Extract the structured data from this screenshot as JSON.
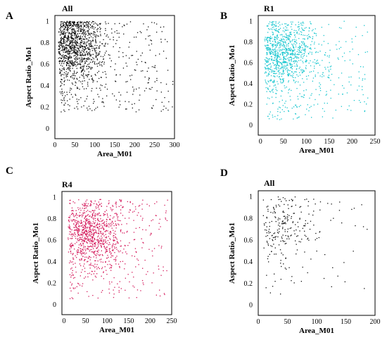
{
  "chart_data": [
    {
      "panel": "A",
      "title": "All",
      "type": "scatter",
      "xlabel": "Area_M01",
      "ylabel": "Aspect Ratio_Mo1",
      "xlim": [
        0,
        300
      ],
      "ylim": [
        -0.1,
        1.05
      ],
      "xticks": [
        0,
        50,
        100,
        150,
        200,
        250,
        300
      ],
      "yticks": [
        0,
        0.2,
        0.4,
        0.6,
        0.8,
        1
      ],
      "color": "#111111",
      "n_points": 1400,
      "cluster_center": [
        38,
        0.78
      ],
      "area_spread": 42,
      "aspect_range": [
        0.15,
        1.0
      ],
      "upper_area": 295
    },
    {
      "panel": "B",
      "title": "R1",
      "type": "scatter",
      "xlabel": "Area_M01",
      "ylabel": "Aspect Ratio_Mo1",
      "xlim": [
        -5,
        250
      ],
      "ylim": [
        -0.1,
        1.05
      ],
      "xticks": [
        0,
        50,
        100,
        150,
        200,
        250
      ],
      "yticks": [
        0,
        0.2,
        0.4,
        0.6,
        0.8,
        1
      ],
      "color": "#18c6cf",
      "n_points": 1100,
      "cluster_center": [
        40,
        0.68
      ],
      "area_spread": 40,
      "aspect_range": [
        0.05,
        1.0
      ],
      "upper_area": 235
    },
    {
      "panel": "C",
      "title": "R4",
      "type": "scatter",
      "xlabel": "Area_M01",
      "ylabel": "Aspect Ratio_Mo1",
      "xlim": [
        -5,
        250
      ],
      "ylim": [
        -0.1,
        1.05
      ],
      "xticks": [
        0,
        50,
        100,
        150,
        200,
        250
      ],
      "yticks": [
        0,
        0.2,
        0.4,
        0.6,
        0.8,
        1
      ],
      "color": "#d4185a",
      "n_points": 1100,
      "cluster_center": [
        50,
        0.65
      ],
      "area_spread": 45,
      "aspect_range": [
        0.05,
        0.98
      ],
      "upper_area": 240
    },
    {
      "panel": "D",
      "title": "All",
      "type": "scatter",
      "xlabel": "Area_M01",
      "ylabel": "Aspect Ratio_Mo1",
      "xlim": [
        0,
        200
      ],
      "ylim": [
        -0.1,
        1.05
      ],
      "xticks": [
        0,
        50,
        100,
        150,
        200
      ],
      "yticks": [
        0,
        0.2,
        0.4,
        0.6,
        0.8,
        1
      ],
      "color": "#111111",
      "n_points": 260,
      "cluster_center": [
        35,
        0.72
      ],
      "area_spread": 35,
      "aspect_range": [
        0.1,
        1.0
      ],
      "upper_area": 200
    }
  ]
}
